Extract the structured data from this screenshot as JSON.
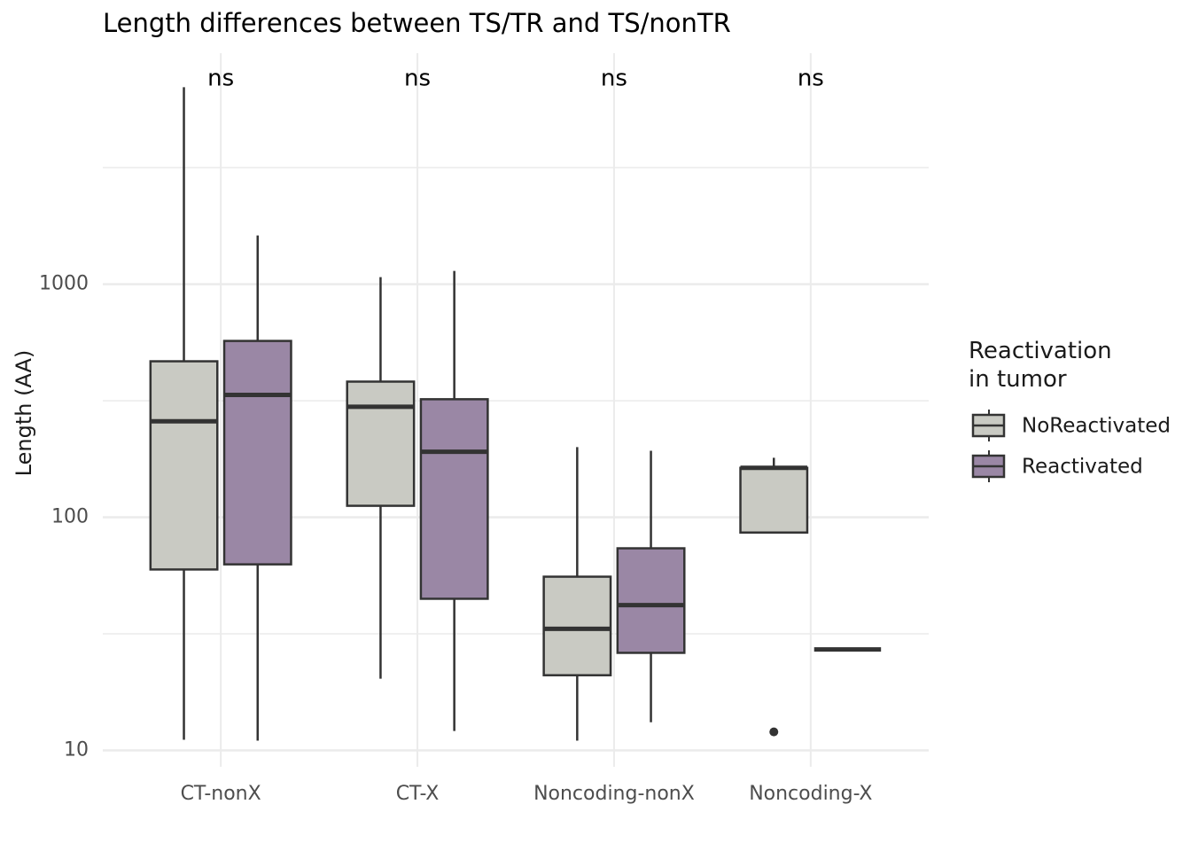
{
  "chart_data": {
    "type": "box",
    "title": "Length differences between TS/TR and TS/nonTR",
    "y_label": "Length (AA)",
    "legend_title": "Reactivation\nin tumor",
    "categories": [
      "CT-nonX",
      "CT-X",
      "Noncoding-nonX",
      "Noncoding-X"
    ],
    "annotations": [
      "ns",
      "ns",
      "ns",
      "ns"
    ],
    "log_y": true,
    "grid": true,
    "ylim": [
      8.5,
      9800
    ],
    "yticks": [
      10,
      100,
      1000
    ],
    "series": [
      {
        "name": "NoReactivated",
        "color": "#c9cac3",
        "whisker_low": [
          11.1,
          20.3,
          11,
          86
        ],
        "q1": [
          59.7,
          112,
          21,
          86
        ],
        "median": [
          258,
          298,
          33.2,
          163
        ],
        "q3": [
          467,
          382,
          55.6,
          163
        ],
        "whisker_high": [
          7000,
          1072,
          200,
          180
        ],
        "outliers": [
          [],
          [],
          [],
          [
            12
          ]
        ]
      },
      {
        "name": "Reactivated",
        "color": "#9a87a5",
        "whisker_low": [
          11,
          12.1,
          13.2,
          27.1
        ],
        "q1": [
          62.8,
          44.7,
          26.2,
          27.1
        ],
        "median": [
          335,
          191,
          42,
          27.1
        ],
        "q3": [
          571,
          321,
          73.6,
          27.1
        ],
        "whisker_high": [
          1618,
          1140,
          193,
          27.1
        ],
        "outliers": [
          [],
          [],
          [],
          []
        ]
      }
    ]
  }
}
